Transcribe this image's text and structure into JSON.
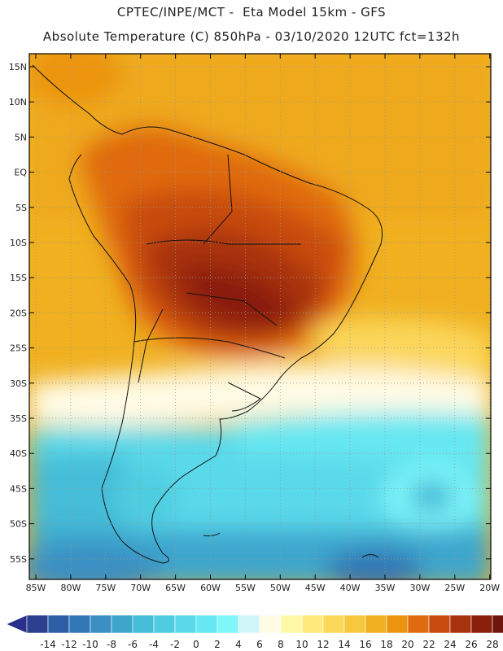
{
  "title_line1": "CPTEC/INPE/MCT -  Eta Model 15km - GFS",
  "title_line2": "Absolute Temperature (C) 850hPa - 03/10/2020 12UTC fct=132h",
  "lat_labels": [
    "15N",
    "10N",
    "5N",
    "EQ",
    "5S",
    "10S",
    "15S",
    "20S",
    "25S",
    "30S",
    "35S",
    "40S",
    "45S",
    "50S",
    "55S"
  ],
  "lon_labels": [
    "85W",
    "80W",
    "75W",
    "70W",
    "65W",
    "60W",
    "55W",
    "50W",
    "45W",
    "40W",
    "35W",
    "30W",
    "25W",
    "20W"
  ],
  "colorbar": {
    "tick_labels": [
      "-14",
      "-12",
      "-10",
      "-8",
      "-6",
      "-4",
      "-2",
      "0",
      "2",
      "4",
      "6",
      "8",
      "10",
      "12",
      "14",
      "16",
      "18",
      "20",
      "22",
      "24",
      "26",
      "28"
    ],
    "colors": [
      "#2b3f8f",
      "#2e5fa6",
      "#3277b6",
      "#3a8fc3",
      "#3ea6cd",
      "#45bcd8",
      "#4fcde0",
      "#5ad9ea",
      "#66e7f2",
      "#7ef6fa",
      "#cff5f8",
      "#fffbe5",
      "#fff7a8",
      "#ffe97a",
      "#fbd75a",
      "#f6c83f",
      "#f0b020",
      "#ec9410",
      "#e06a10",
      "#c84b10",
      "#a8320e",
      "#8a1f0c",
      "#6e150c"
    ],
    "under_color": "#2a2e8c",
    "over_color": "#7a0a2a"
  },
  "colors": {
    "frame": "#000000",
    "grid": "#999999"
  }
}
